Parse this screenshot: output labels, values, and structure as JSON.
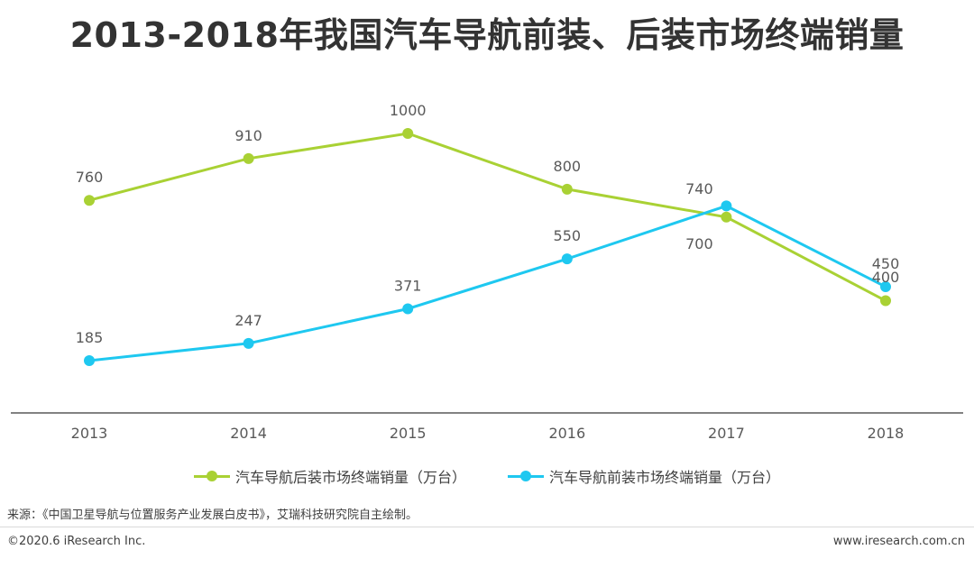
{
  "chart_data": {
    "type": "line",
    "title": "2013-2018年我国汽车导航前装、后装市场终端销量",
    "categories": [
      "2013",
      "2014",
      "2015",
      "2016",
      "2017",
      "2018"
    ],
    "series": [
      {
        "name": "汽车导航后装市场终端销量（万台）",
        "values": [
          760,
          910,
          1000,
          800,
          700,
          400
        ],
        "color": "#a9d134"
      },
      {
        "name": "汽车导航前装市场终端销量（万台）",
        "values": [
          185,
          247,
          371,
          550,
          740,
          450
        ],
        "color": "#1ec8f0"
      }
    ],
    "xlabel": "",
    "ylabel": "",
    "ylim": [
      0,
      1100
    ]
  },
  "source": "来源：《中国卫星导航与位置服务产业发展白皮书》，艾瑞科技研究院自主绘制。",
  "copyright": "©2020.6 iResearch Inc.",
  "website": "www.iresearch.com.cn"
}
